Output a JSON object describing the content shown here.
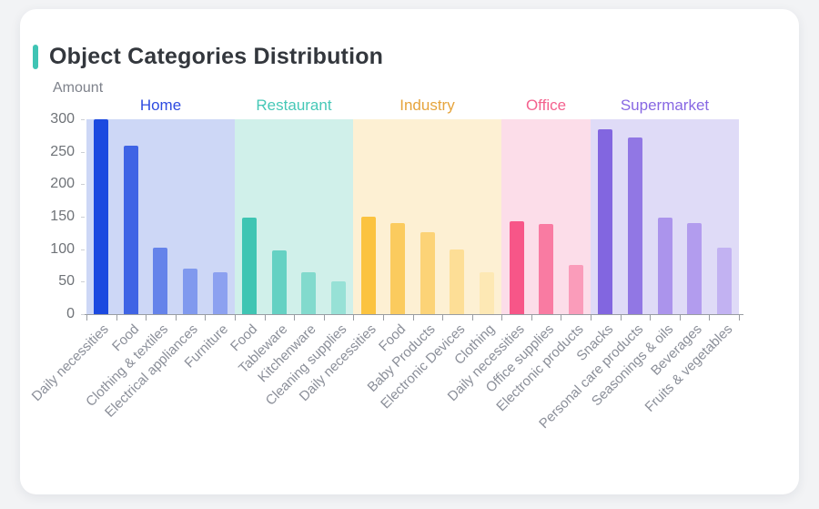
{
  "header": {
    "title": "Object Categories Distribution"
  },
  "colors": {
    "accent": "#3fc4b4",
    "page_bg": "#f2f3f5",
    "card_bg": "#ffffff",
    "title_text": "#33373d",
    "axis_line": "#999da3",
    "y_tick_text": "#6f7378",
    "x_label_text": "#8b8f99",
    "axis_name_text": "#7e828b"
  },
  "chart_data": {
    "type": "bar",
    "title": "Object Categories Distribution",
    "ylabel": "Amount",
    "xlabel": "",
    "ylim": [
      0,
      300
    ],
    "y_ticks": [
      300,
      250,
      200,
      150,
      100,
      50,
      0
    ],
    "grid": false,
    "legend": "none",
    "groups": [
      {
        "name": "Home",
        "label_color": "#2e4be0",
        "band_color": "#cdd7f6",
        "bar_colors": [
          "#1b49e0",
          "#3f64e5",
          "#6583ea",
          "#8099ee",
          "#8ca1f0"
        ],
        "categories": [
          "Daily necessities",
          "Food",
          "Clothing & textiles",
          "Electrical appliances",
          "Furniture"
        ],
        "values": [
          300,
          260,
          103,
          70,
          65
        ]
      },
      {
        "name": "Restaurant",
        "label_color": "#46c8b7",
        "band_color": "#d0f0ea",
        "bar_colors": [
          "#3fc5b3",
          "#65d1c3",
          "#82dacd",
          "#97e1d6"
        ],
        "categories": [
          "Food",
          "Tableware",
          "Kitchenware",
          "Cleaning supplies"
        ],
        "values": [
          148,
          98,
          65,
          50
        ]
      },
      {
        "name": "Industry",
        "label_color": "#e6a43c",
        "band_color": "#fdf0d3",
        "bar_colors": [
          "#fbc33f",
          "#fbcb5e",
          "#fcd377",
          "#fdde96",
          "#fde8b4"
        ],
        "categories": [
          "Daily necessities",
          "Food",
          "Baby Products",
          "Electronic Devices",
          "Clothing"
        ],
        "values": [
          150,
          140,
          126,
          100,
          64
        ]
      },
      {
        "name": "Office",
        "label_color": "#f4618e",
        "band_color": "#fcdde9",
        "bar_colors": [
          "#f75688",
          "#f97ba2",
          "#fa9cba"
        ],
        "categories": [
          "Daily necessities",
          "Office supplies",
          "Electronic products"
        ],
        "values": [
          143,
          139,
          75
        ]
      },
      {
        "name": "Supermarket",
        "label_color": "#8767e3",
        "band_color": "#dfdbf7",
        "bar_colors": [
          "#8266e0",
          "#9177e4",
          "#ab94ec",
          "#b29cee",
          "#c2b2f2"
        ],
        "categories": [
          "Snacks",
          "Personal care products",
          "Seasonings & oils",
          "Beverages",
          "Fruits & vegetables"
        ],
        "values": [
          285,
          272,
          148,
          140,
          102
        ]
      }
    ]
  }
}
